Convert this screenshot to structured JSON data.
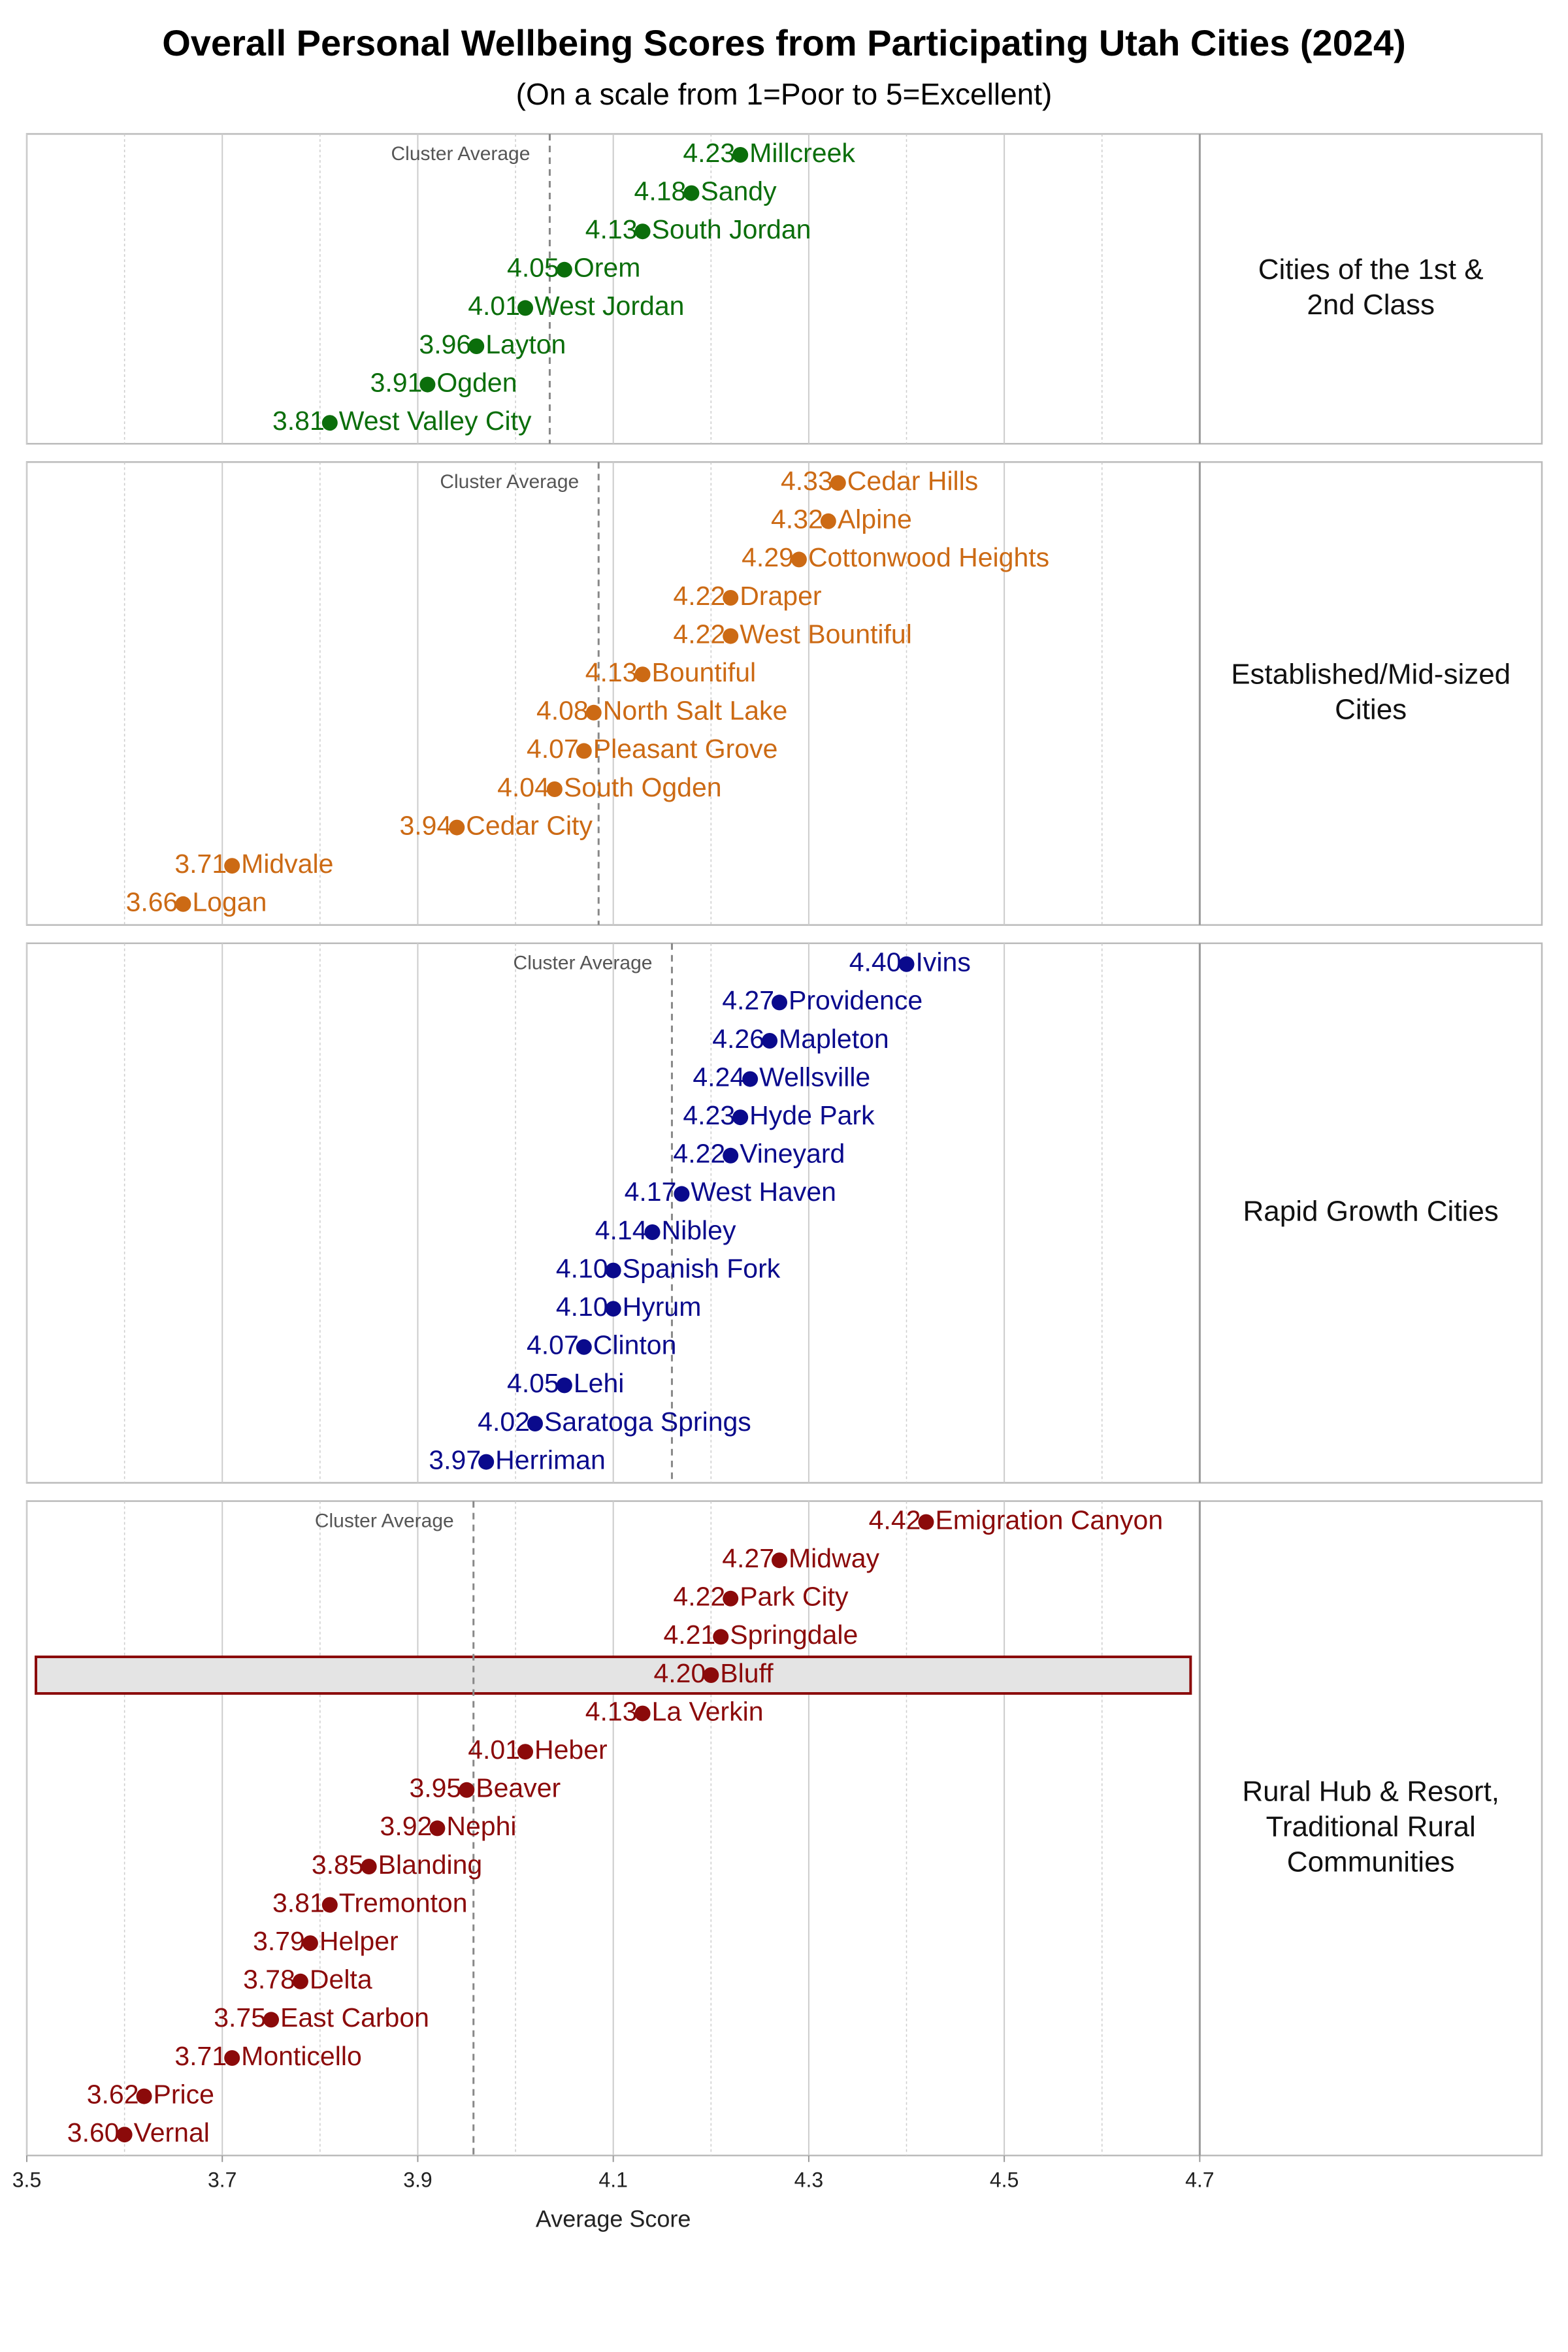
{
  "chart_data": {
    "type": "dot",
    "title": "Overall Personal Wellbeing Scores from Participating Utah Cities (2024)",
    "subtitle": "(On a scale from 1=Poor to 5=Excellent)",
    "xlabel": "Average Score",
    "xlim": [
      3.5,
      5.05
    ],
    "xticks": [
      3.5,
      3.7,
      3.9,
      4.1,
      4.3,
      4.5,
      4.7
    ],
    "minor_xticks": [
      3.6,
      3.8,
      4.0,
      4.2,
      4.4,
      4.6
    ],
    "grid": true,
    "panels": [
      {
        "label": "Cities of the 1st & 2nd Class",
        "color": "#0b6e0b",
        "cluster_average": 4.035,
        "cluster_average_label": "Cluster Average",
        "categories": [
          "Millcreek",
          "Sandy",
          "South Jordan",
          "Orem",
          "West Jordan",
          "Layton",
          "Ogden",
          "West Valley City"
        ],
        "values": [
          4.23,
          4.18,
          4.13,
          4.05,
          4.01,
          3.96,
          3.91,
          3.81
        ],
        "value_labels": [
          "4.23",
          "4.18",
          "4.13",
          "4.05",
          "4.01",
          "3.96",
          "3.91",
          "3.81"
        ]
      },
      {
        "label": "Established/Mid-sized Cities",
        "color": "#cc6a14",
        "cluster_average": 4.085,
        "cluster_average_label": "Cluster Average",
        "categories": [
          "Cedar Hills",
          "Alpine",
          "Cottonwood Heights",
          "Draper",
          "West Bountiful",
          "Bountiful",
          "North Salt Lake",
          "Pleasant Grove",
          "South Ogden",
          "Cedar City",
          "Midvale",
          "Logan"
        ],
        "values": [
          4.33,
          4.32,
          4.29,
          4.22,
          4.22,
          4.13,
          4.08,
          4.07,
          4.04,
          3.94,
          3.71,
          3.66
        ],
        "value_labels": [
          "4.33",
          "4.32",
          "4.29",
          "4.22",
          "4.22",
          "4.13",
          "4.08",
          "4.07",
          "4.04",
          "3.94",
          "3.71",
          "3.66"
        ]
      },
      {
        "label": "Rapid Growth Cities",
        "color": "#0a0a8c",
        "cluster_average": 4.16,
        "cluster_average_label": "Cluster Average",
        "categories": [
          "Ivins",
          "Providence",
          "Mapleton",
          "Wellsville",
          "Hyde Park",
          "Vineyard",
          "West Haven",
          "Nibley",
          "Spanish Fork",
          "Hyrum",
          "Clinton",
          "Lehi",
          "Saratoga Springs",
          "Herriman"
        ],
        "values": [
          4.4,
          4.27,
          4.26,
          4.24,
          4.23,
          4.22,
          4.17,
          4.14,
          4.1,
          4.1,
          4.07,
          4.05,
          4.02,
          3.97
        ],
        "value_labels": [
          "4.40",
          "4.27",
          "4.26",
          "4.24",
          "4.23",
          "4.22",
          "4.17",
          "4.14",
          "4.10",
          "4.10",
          "4.07",
          "4.05",
          "4.02",
          "3.97"
        ]
      },
      {
        "label": "Rural Hub & Resort, Traditional Rural Communities",
        "color": "#8b0a0a",
        "cluster_average": 3.957,
        "cluster_average_label": "Cluster Average",
        "highlight": 4,
        "categories": [
          "Emigration Canyon",
          "Midway",
          "Park City",
          "Springdale",
          "Bluff",
          "La Verkin",
          "Heber",
          "Beaver",
          "Nephi",
          "Blanding",
          "Tremonton",
          "Helper",
          "Delta",
          "East Carbon",
          "Monticello",
          "Price",
          "Vernal"
        ],
        "values": [
          4.42,
          4.27,
          4.22,
          4.21,
          4.2,
          4.13,
          4.01,
          3.95,
          3.92,
          3.85,
          3.81,
          3.79,
          3.78,
          3.75,
          3.71,
          3.62,
          3.6
        ],
        "value_labels": [
          "4.42",
          "4.27",
          "4.22",
          "4.21",
          "4.20",
          "4.13",
          "4.01",
          "3.95",
          "3.92",
          "3.85",
          "3.81",
          "3.79",
          "3.78",
          "3.75",
          "3.71",
          "3.62",
          "3.60"
        ]
      }
    ]
  }
}
